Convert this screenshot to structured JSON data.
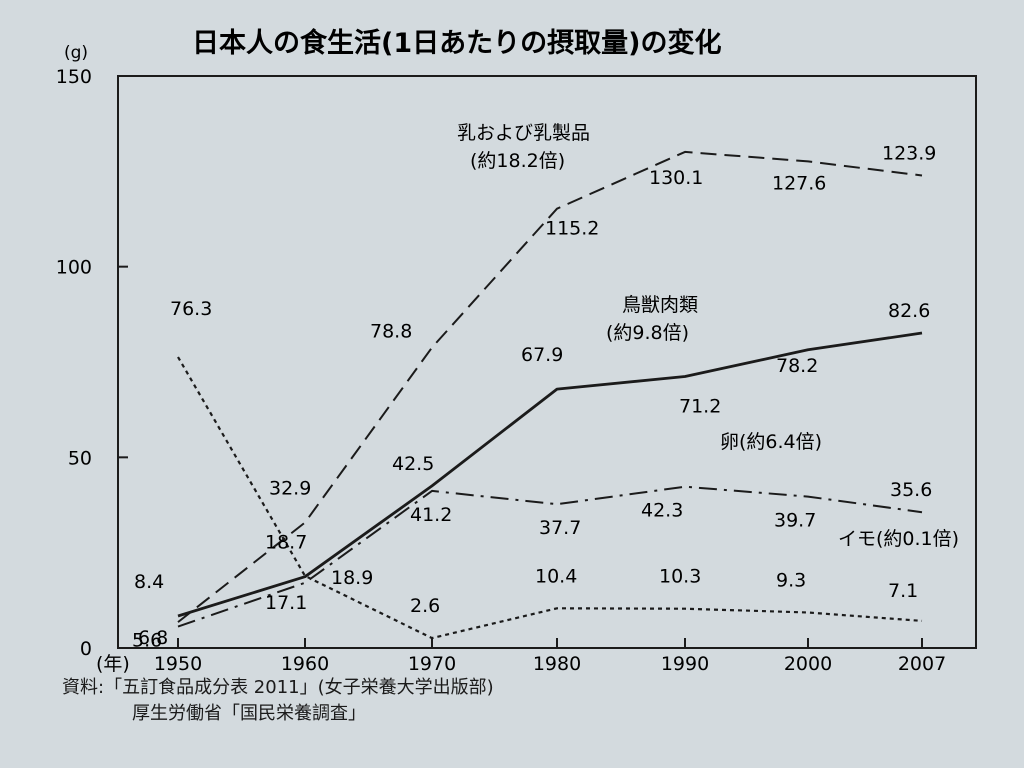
{
  "chart_data": {
    "type": "line",
    "title": "日本人の食生活(1日あたりの摂取量)の変化",
    "y_unit": "(g)",
    "x_unit": "(年)",
    "ylim": [
      0,
      150
    ],
    "y_ticks": [
      0,
      50,
      100,
      150
    ],
    "x": [
      1950,
      1960,
      1970,
      1980,
      1990,
      2000,
      2007
    ],
    "x_ticks": [
      "1950",
      "1960",
      "1970",
      "1980",
      "1990",
      "2000",
      "2007"
    ],
    "series": [
      {
        "name": "乳および乳製品",
        "note": "(約18.2倍)",
        "style": "dashed",
        "values": [
          6.8,
          32.9,
          78.8,
          115.2,
          130.1,
          127.6,
          123.9
        ]
      },
      {
        "name": "鳥獣肉類",
        "note": "(約9.8倍)",
        "style": "solid",
        "values": [
          8.4,
          18.7,
          42.5,
          67.9,
          71.2,
          78.2,
          82.6
        ]
      },
      {
        "name": "卵",
        "note": "(約6.4倍)",
        "style": "dashdot",
        "values": [
          5.6,
          17.1,
          41.2,
          37.7,
          42.3,
          39.7,
          35.6
        ]
      },
      {
        "name": "イモ",
        "note": "(約0.1倍)",
        "style": "dotted",
        "values": [
          76.3,
          18.9,
          2.6,
          10.4,
          10.3,
          9.3,
          7.1
        ]
      }
    ],
    "grid": false
  },
  "source": {
    "line1": "資料:「五訂食品成分表 2011」(女子栄養大学出版部)",
    "line2": "厚生労働省「国民栄養調査」"
  },
  "colors": {
    "background": "#d3dade",
    "ink": "#1b1b1b"
  }
}
